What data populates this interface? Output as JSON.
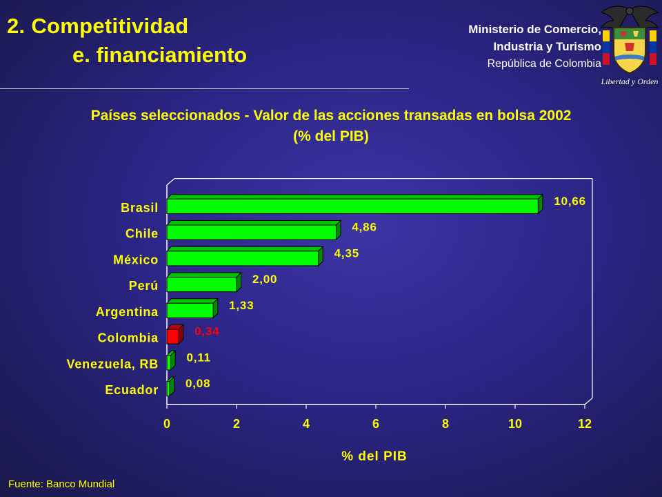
{
  "header": {
    "section_title": "2. Competitividad",
    "subsection_title": "e. financiamiento"
  },
  "ministry": {
    "line1": "Ministerio de Comercio,",
    "line2": "Industria y Turismo",
    "line3": "República de Colombia",
    "motto": "Libertad y Orden"
  },
  "colors": {
    "title": "#ffff00",
    "bar": "#00ff00",
    "highlight_bar": "#ff0000",
    "axis": "#ffffff",
    "label": "#ffff00"
  },
  "chart_data": {
    "type": "bar",
    "orientation": "horizontal",
    "title": "Países seleccionados - Valor de las acciones transadas en bolsa 2002",
    "subtitle": "(% del PIB)",
    "xlabel": "% del PIB",
    "ylabel": "",
    "categories": [
      "Brasil",
      "Chile",
      "México",
      "Perú",
      "Argentina",
      "Colombia",
      "Venezuela, RB",
      "Ecuador"
    ],
    "values": [
      10.66,
      4.86,
      4.35,
      2.0,
      1.33,
      0.34,
      0.11,
      0.08
    ],
    "value_labels": [
      "10,66",
      "4,86",
      "4,35",
      "2,00",
      "1,33",
      "0,34",
      "0,11",
      "0,08"
    ],
    "highlight_category": "Colombia",
    "xlim": [
      0,
      12
    ],
    "xticks": [
      "0",
      "2",
      "4",
      "6",
      "8",
      "10",
      "12"
    ],
    "grid": false,
    "legend": "none"
  },
  "source": "Fuente: Banco Mundial"
}
